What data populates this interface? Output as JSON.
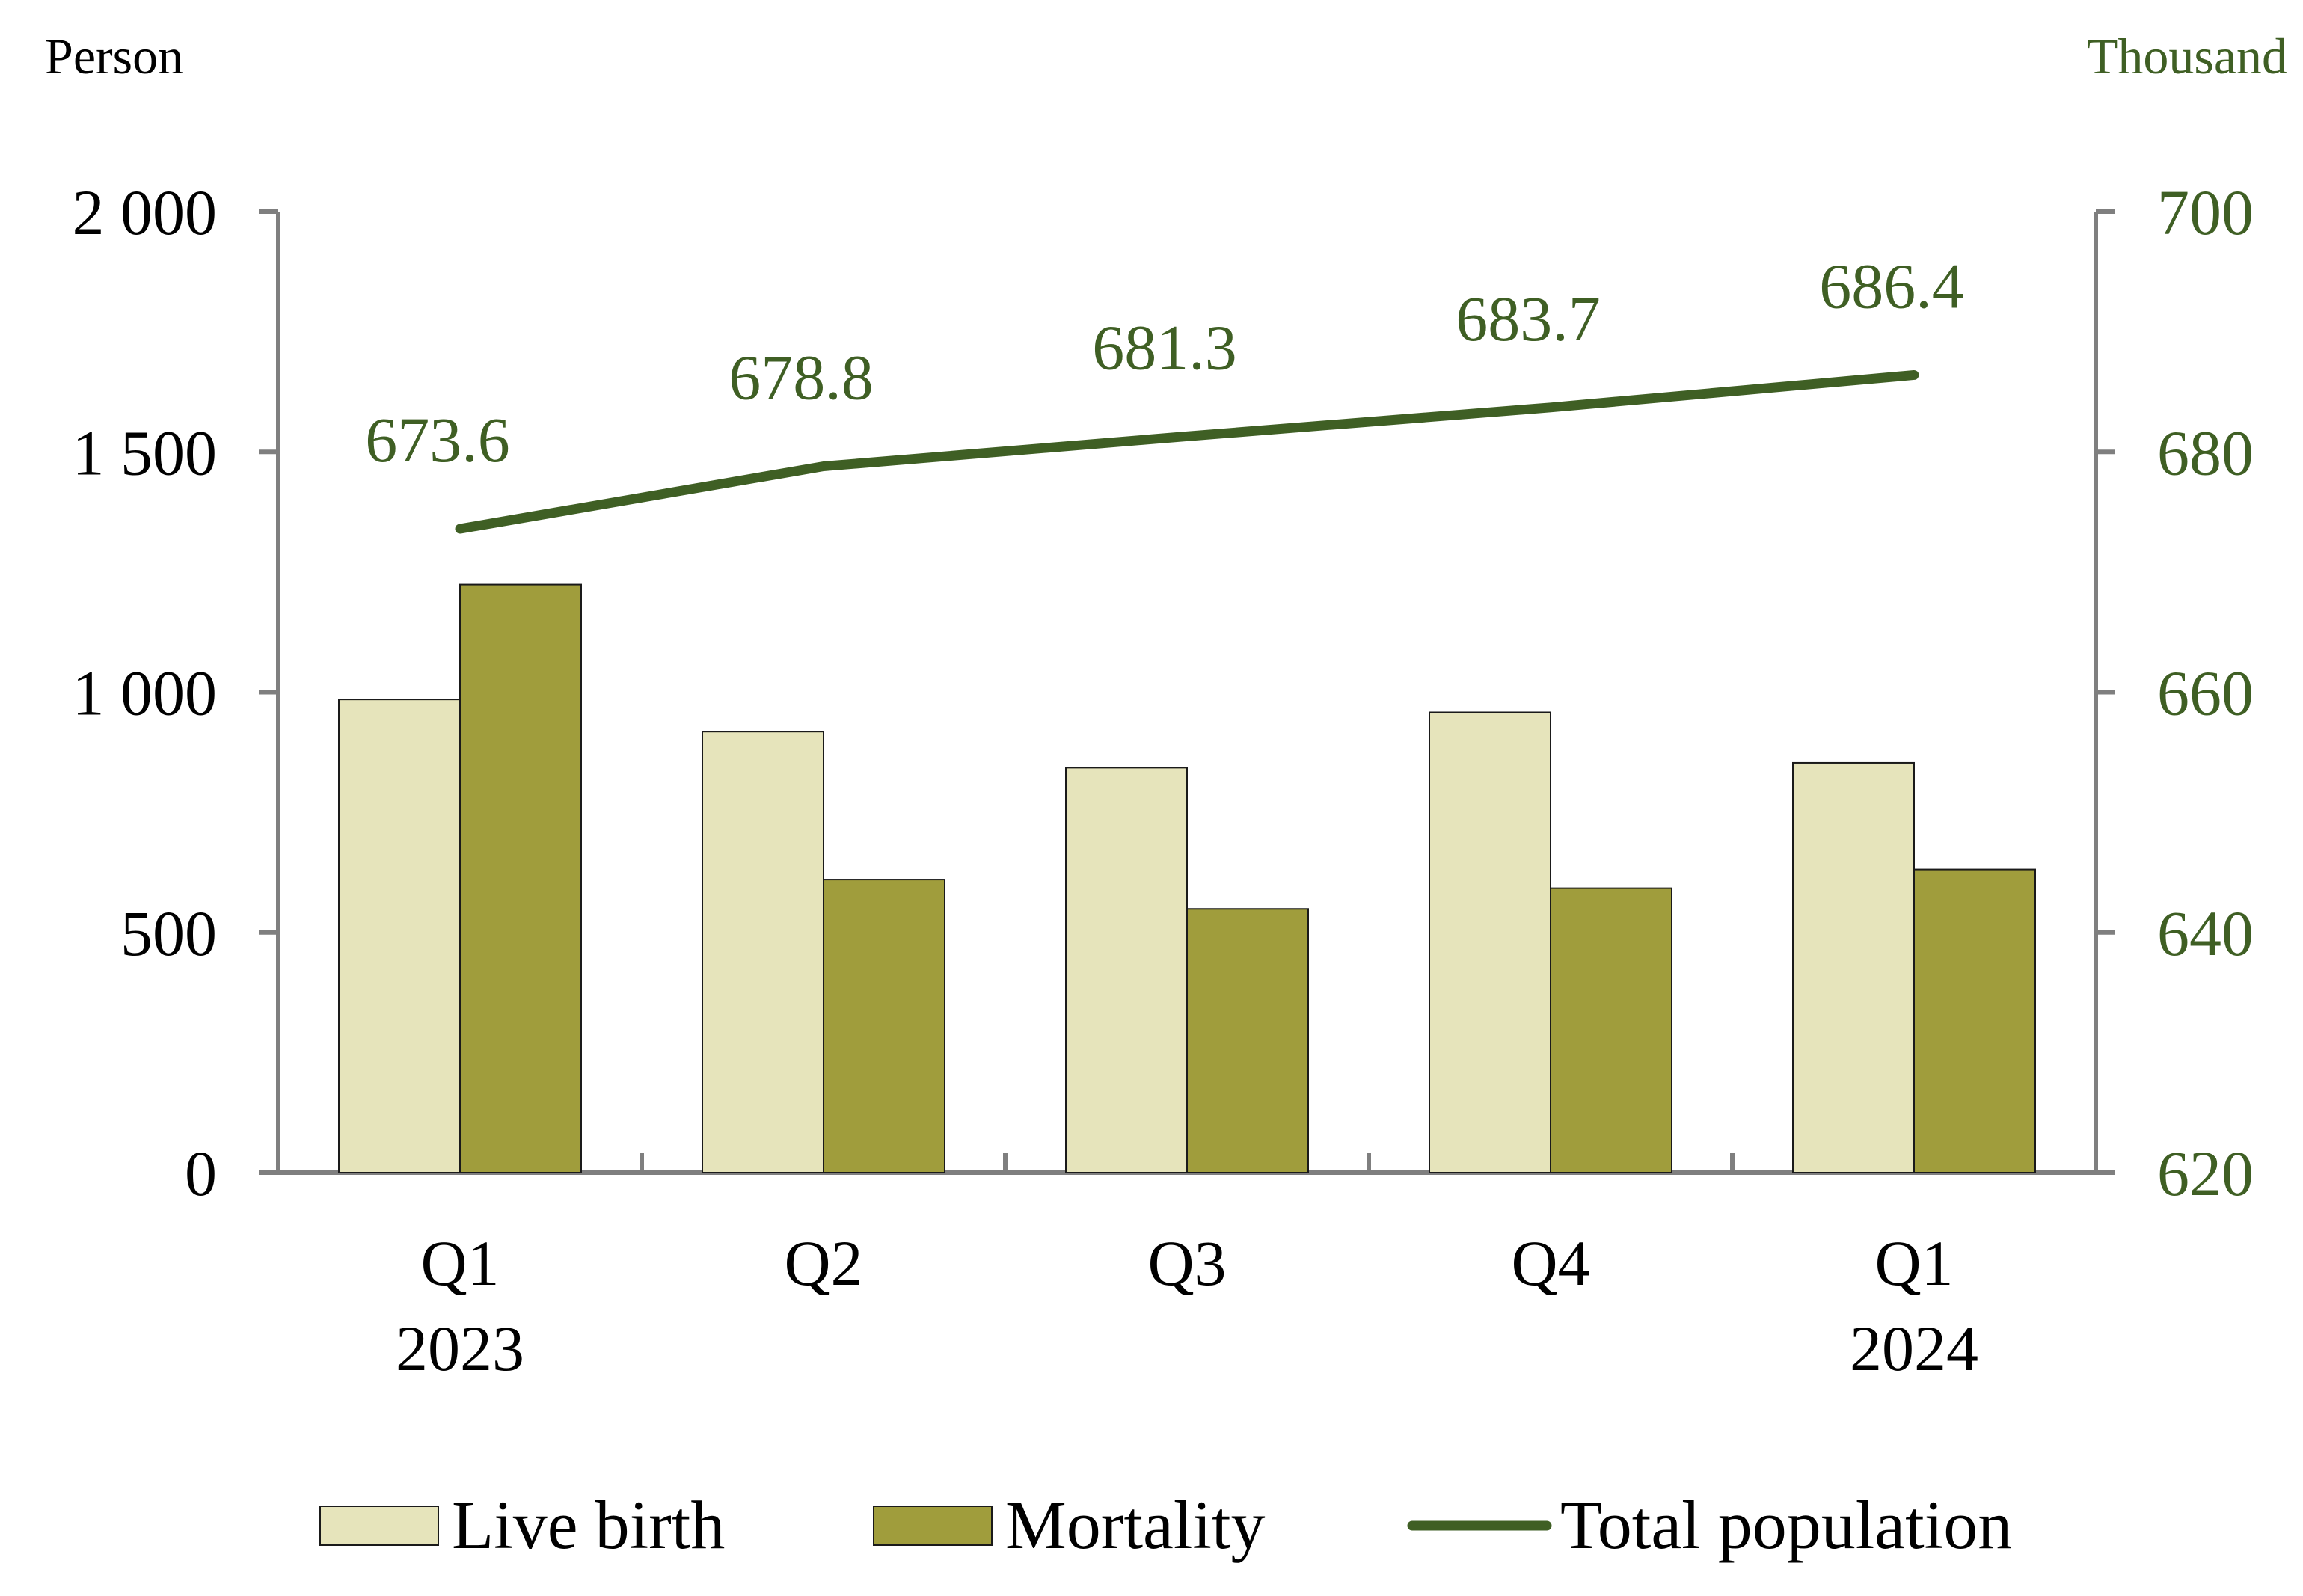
{
  "colors": {
    "live_birth": "#e6e4bb",
    "mortality": "#a09d3c",
    "total_population": "#3f5f24",
    "axis": "#7f7f7f",
    "bar_outline": "#1a1a1a"
  },
  "chart_data": {
    "type": "bar",
    "categories": [
      {
        "quarter": "Q1",
        "year": "2023"
      },
      {
        "quarter": "Q2",
        "year": ""
      },
      {
        "quarter": "Q3",
        "year": ""
      },
      {
        "quarter": "Q4",
        "year": ""
      },
      {
        "quarter": "Q1",
        "year": "2024"
      }
    ],
    "series": [
      {
        "name": "Live birth",
        "kind": "bar",
        "axis": "left",
        "color_key": "live_birth",
        "values": [
          985,
          918,
          843,
          958,
          853
        ]
      },
      {
        "name": "Mortality",
        "kind": "bar",
        "axis": "left",
        "color_key": "mortality",
        "values": [
          1224,
          610,
          549,
          592,
          631
        ]
      },
      {
        "name": "Total population",
        "kind": "line",
        "axis": "right",
        "color_key": "total_population",
        "values": [
          673.6,
          678.8,
          681.3,
          683.7,
          686.4
        ],
        "labels": [
          "673.6",
          "678.8",
          "681.3",
          "683.7",
          "686.4"
        ]
      }
    ],
    "left_axis": {
      "unit": "Person",
      "range": [
        0,
        2000
      ],
      "ticks": [
        0,
        500,
        1000,
        1500,
        2000
      ],
      "tick_labels": [
        "0",
        "500",
        "1 000",
        "1 500",
        "2 000"
      ]
    },
    "right_axis": {
      "unit": "Thousand",
      "range": [
        620,
        700
      ],
      "ticks": [
        620,
        640,
        660,
        680,
        700
      ],
      "tick_labels": [
        "620",
        "640",
        "660",
        "680",
        "700"
      ]
    },
    "grid": false,
    "legend": {
      "position": "bottom",
      "items": [
        {
          "label": "Live birth",
          "symbol": "box",
          "color_key": "live_birth"
        },
        {
          "label": "Mortality",
          "symbol": "box",
          "color_key": "mortality"
        },
        {
          "label": "Total population",
          "symbol": "line",
          "color_key": "total_population"
        }
      ]
    }
  }
}
